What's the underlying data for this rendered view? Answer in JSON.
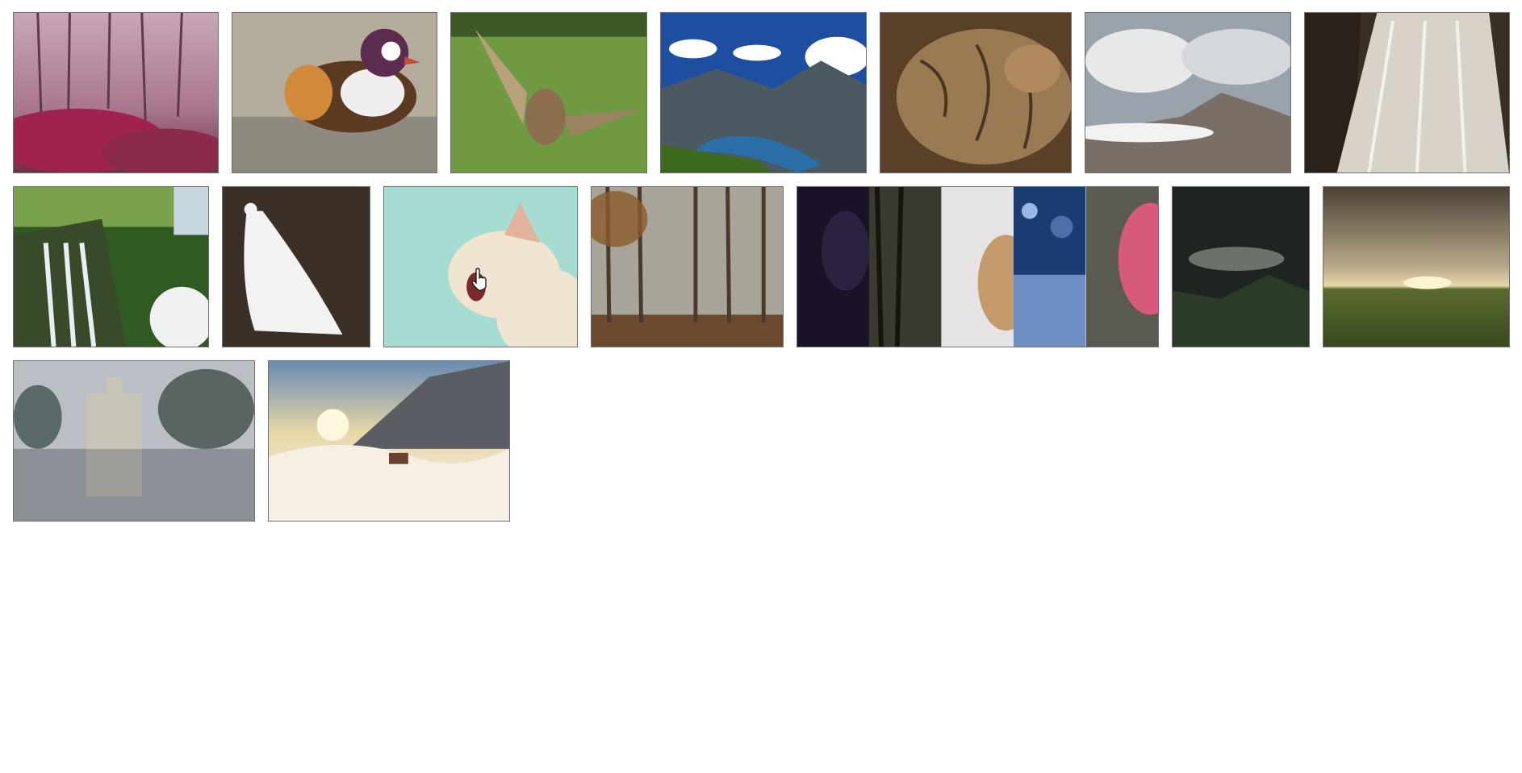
{
  "gallery": {
    "rows": [
      {
        "items": [
          {
            "subject": "misty-pink-forest"
          },
          {
            "subject": "mandarin-duck"
          },
          {
            "subject": "owl-landing"
          },
          {
            "subject": "alpine-lake-valley"
          },
          {
            "subject": "sleeping-cat"
          },
          {
            "subject": "cloudy-mountain-summit"
          },
          {
            "subject": "cascading-waterfall"
          }
        ]
      },
      {
        "items": [
          {
            "subject": "jungle-waterfall"
          },
          {
            "subject": "white-peacock"
          },
          {
            "subject": "yawning-cat"
          },
          {
            "subject": "foggy-autumn-forest"
          },
          {
            "subject": "collage-strip",
            "slices": [
              "dark-purple-sky",
              "dark-forest",
              "cat-closeup",
              "blue-beach",
              "pink-rose"
            ]
          },
          {
            "subject": "dark-stormy-hills"
          },
          {
            "subject": "sunset-meadow"
          }
        ]
      },
      {
        "items": [
          {
            "subject": "castle-reflection"
          },
          {
            "subject": "snowy-sunrise-cabin"
          }
        ]
      }
    ]
  },
  "cursor": {
    "icon": "hand-pointer-icon"
  }
}
